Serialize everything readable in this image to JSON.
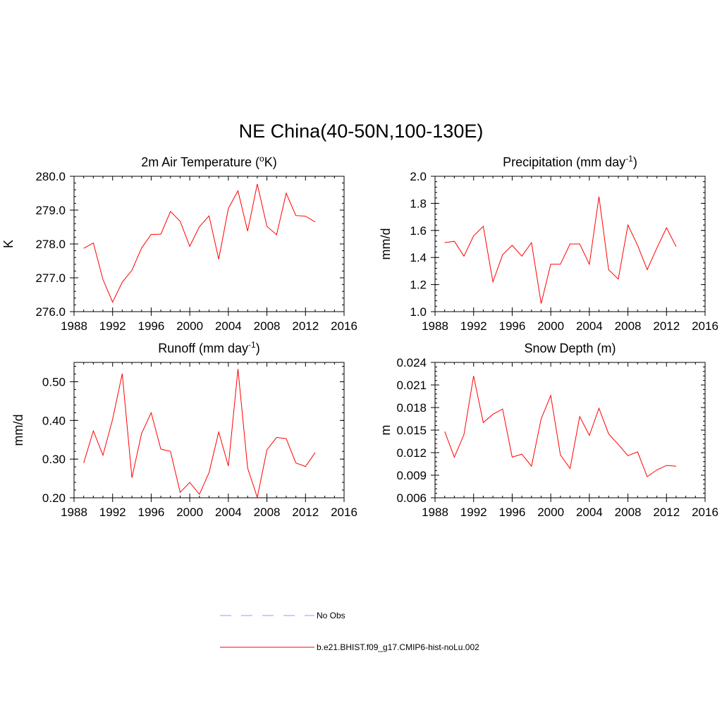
{
  "title": "NE China(40-50N,100-130E)",
  "colors": {
    "model": "#ff0000",
    "obs": "#9999ff",
    "axis": "#000000"
  },
  "legend": [
    {
      "label": "No Obs",
      "style": "dashed",
      "color": "#9999ff"
    },
    {
      "label": "b.e21.BHIST.f09_g17.CMIP6-hist-noLu.002",
      "style": "solid",
      "color": "#ff0000"
    }
  ],
  "chart_data": [
    {
      "type": "line",
      "title": "2m Air Temperature (",
      "title_sup": "o",
      "title_tail": "K)",
      "ylabel": "K",
      "xlim": [
        1988,
        2016
      ],
      "ylim": [
        276.0,
        280.0
      ],
      "xticks": [
        "1988",
        "1992",
        "1996",
        "2000",
        "2004",
        "2008",
        "2012",
        "2016"
      ],
      "yticks": [
        "276.0",
        "277.0",
        "278.0",
        "279.0",
        "280.0"
      ],
      "x": [
        1989,
        1990,
        1991,
        1992,
        1993,
        1994,
        1995,
        1996,
        1997,
        1998,
        1999,
        2000,
        2001,
        2002,
        2003,
        2004,
        2005,
        2006,
        2007,
        2008,
        2009,
        2010,
        2011,
        2012,
        2013
      ],
      "series": [
        {
          "values": [
            277.87,
            278.03,
            276.95,
            276.28,
            276.87,
            277.22,
            277.88,
            278.28,
            278.29,
            278.96,
            278.67,
            277.93,
            278.51,
            278.83,
            277.55,
            279.05,
            279.57,
            278.38,
            279.77,
            278.52,
            278.27,
            279.5,
            278.84,
            278.82,
            278.65
          ]
        }
      ]
    },
    {
      "type": "line",
      "title": "Precipitation (mm day",
      "title_sup": "-1",
      "title_tail": ")",
      "ylabel": "mm/d",
      "xlim": [
        1988,
        2016
      ],
      "ylim": [
        1.0,
        2.0
      ],
      "xticks": [
        "1988",
        "1992",
        "1996",
        "2000",
        "2004",
        "2008",
        "2012",
        "2016"
      ],
      "yticks": [
        "1.0",
        "1.2",
        "1.4",
        "1.6",
        "1.8",
        "2.0"
      ],
      "x": [
        1989,
        1990,
        1991,
        1992,
        1993,
        1994,
        1995,
        1996,
        1997,
        1998,
        1999,
        2000,
        2001,
        2002,
        2003,
        2004,
        2005,
        2006,
        2007,
        2008,
        2009,
        2010,
        2011,
        2012,
        2013
      ],
      "series": [
        {
          "values": [
            1.51,
            1.52,
            1.41,
            1.56,
            1.63,
            1.22,
            1.42,
            1.49,
            1.41,
            1.51,
            1.06,
            1.35,
            1.35,
            1.5,
            1.5,
            1.35,
            1.85,
            1.31,
            1.24,
            1.64,
            1.49,
            1.31,
            1.47,
            1.62,
            1.48
          ]
        }
      ]
    },
    {
      "type": "line",
      "title": "Runoff (mm day",
      "title_sup": "-1",
      "title_tail": ")",
      "ylabel": "mm/d",
      "xlim": [
        1988,
        2016
      ],
      "ylim": [
        0.2,
        0.55
      ],
      "xticks": [
        "1988",
        "1992",
        "1996",
        "2000",
        "2004",
        "2008",
        "2012",
        "2016"
      ],
      "yticks": [
        "0.20",
        "0.30",
        "0.40",
        "0.50"
      ],
      "ytick_values": [
        0.2,
        0.3,
        0.4,
        0.5
      ],
      "x": [
        1989,
        1990,
        1991,
        1992,
        1993,
        1994,
        1995,
        1996,
        1997,
        1998,
        1999,
        2000,
        2001,
        2002,
        2003,
        2004,
        2005,
        2006,
        2007,
        2008,
        2009,
        2010,
        2011,
        2012,
        2013
      ],
      "series": [
        {
          "values": [
            0.29,
            0.373,
            0.31,
            0.403,
            0.521,
            0.252,
            0.366,
            0.42,
            0.326,
            0.32,
            0.214,
            0.24,
            0.209,
            0.265,
            0.37,
            0.282,
            0.533,
            0.277,
            0.201,
            0.324,
            0.356,
            0.353,
            0.29,
            0.281,
            0.317
          ]
        }
      ]
    },
    {
      "type": "line",
      "title": "Snow Depth (m)",
      "title_sup": "",
      "title_tail": "",
      "ylabel": "m",
      "xlim": [
        1988,
        2016
      ],
      "ylim": [
        0.006,
        0.024
      ],
      "xticks": [
        "1988",
        "1992",
        "1996",
        "2000",
        "2004",
        "2008",
        "2012",
        "2016"
      ],
      "yticks": [
        "0.006",
        "0.009",
        "0.012",
        "0.015",
        "0.018",
        "0.021",
        "0.024"
      ],
      "x": [
        1989,
        1990,
        1991,
        1992,
        1993,
        1994,
        1995,
        1996,
        1997,
        1998,
        1999,
        2000,
        2001,
        2002,
        2003,
        2004,
        2005,
        2006,
        2007,
        2008,
        2009,
        2010,
        2011,
        2012,
        2013
      ],
      "series": [
        {
          "values": [
            0.0148,
            0.0114,
            0.0144,
            0.0222,
            0.016,
            0.0171,
            0.0178,
            0.0114,
            0.0118,
            0.0102,
            0.0165,
            0.0196,
            0.0117,
            0.0099,
            0.0168,
            0.0143,
            0.0179,
            0.0145,
            0.0131,
            0.0116,
            0.0121,
            0.0088,
            0.0097,
            0.0103,
            0.0102
          ]
        }
      ]
    }
  ]
}
